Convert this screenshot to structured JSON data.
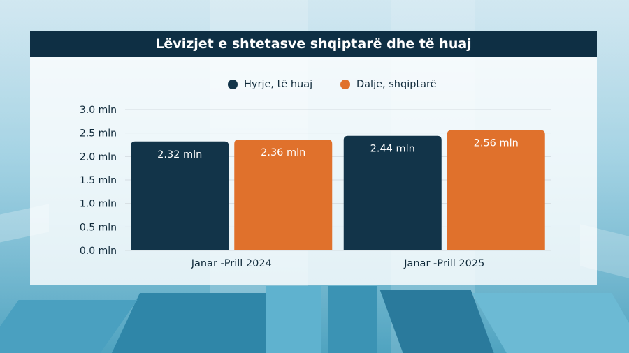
{
  "colors": {
    "title_bg": "#0e2f44",
    "series_1": "#123449",
    "series_2": "#e0712c",
    "grid": "#d5dde2",
    "text": "#102a3a"
  },
  "chart_data": {
    "type": "bar",
    "title": "Lëvizjet e shtetasve shqiptarë dhe të huaj",
    "categories": [
      "Janar -Prill 2024",
      "Janar -Prill 2025"
    ],
    "series": [
      {
        "name": "Hyrje, të huaj",
        "values": [
          2.32,
          2.44
        ],
        "labels": [
          "2.32 mln",
          "2.44 mln"
        ]
      },
      {
        "name": "Dalje, shqiptarë",
        "values": [
          2.36,
          2.56
        ],
        "labels": [
          "2.36 mln",
          "2.56 mln"
        ]
      }
    ],
    "yticks": [
      0,
      0.5,
      1.0,
      1.5,
      2.0,
      2.5,
      3.0
    ],
    "ytick_labels": [
      "0.0 mln",
      "0.5 mln",
      "1.0 mln",
      "1.5 mln",
      "2.0 mln",
      "2.5 mln",
      "3.0 mln"
    ],
    "ylim": [
      0,
      3.0
    ],
    "grid": true,
    "legend_position": "top-center",
    "xlabel": "",
    "ylabel": ""
  }
}
